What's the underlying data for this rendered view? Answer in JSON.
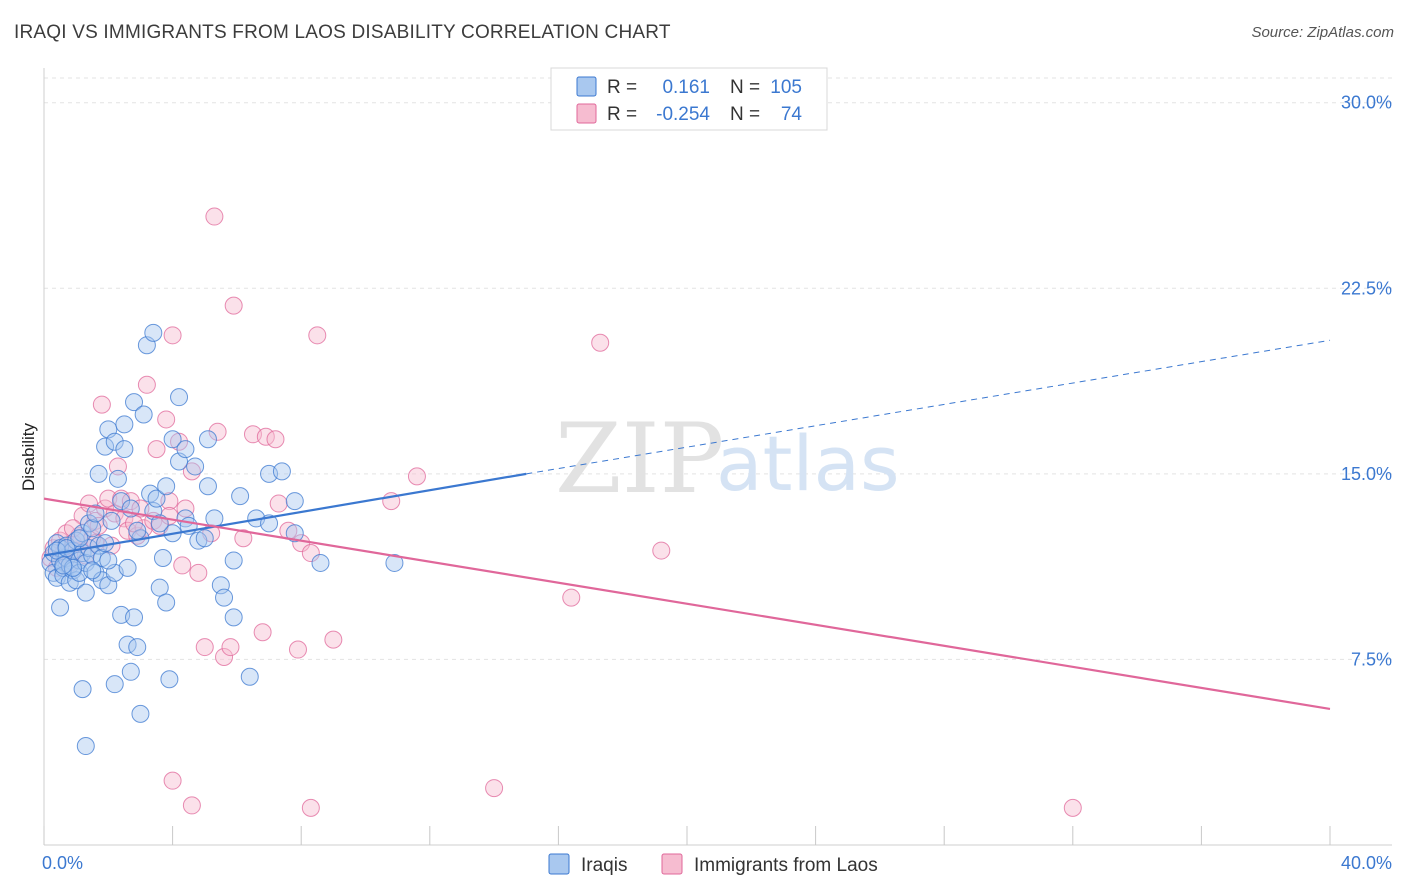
{
  "title": "IRAQI VS IMMIGRANTS FROM LAOS DISABILITY CORRELATION CHART",
  "source": "Source: ZipAtlas.com",
  "watermark": {
    "zip": "ZIP",
    "atlas": "atlas"
  },
  "chart_data": {
    "type": "scatter",
    "ylabel": "Disability",
    "xlim": [
      0,
      40
    ],
    "ylim": [
      0,
      31
    ],
    "x_tick_labels": [
      "0.0%",
      "40.0%"
    ],
    "y_ticks": [
      {
        "value": 7.5,
        "label": "7.5%"
      },
      {
        "value": 15.0,
        "label": "15.0%"
      },
      {
        "value": 22.5,
        "label": "22.5%"
      },
      {
        "value": 30.0,
        "label": "30.0%"
      }
    ],
    "legend": [
      {
        "r_label": "R =",
        "r_value": "0.161",
        "n_label": "N =",
        "n_value": "105"
      },
      {
        "r_label": "R =",
        "r_value": "-0.254",
        "n_label": "N =",
        "n_value": "74"
      }
    ],
    "colors": {
      "iraqis": "#3b78d0",
      "laos": "#e0679a",
      "iraqis_fill": "#a9c8ef",
      "laos_fill": "#f6bcd0"
    },
    "series": [
      {
        "name": "Iraqis",
        "trend": {
          "x0": 0,
          "y0": 11.7,
          "x1": 15,
          "y1": 15.0,
          "dash_x1": 40,
          "dash_y1": 20.4
        },
        "points": [
          [
            0.2,
            11.4
          ],
          [
            0.3,
            11.0
          ],
          [
            0.3,
            11.8
          ],
          [
            0.4,
            12.2
          ],
          [
            0.4,
            10.8
          ],
          [
            0.5,
            11.5
          ],
          [
            0.5,
            12.0
          ],
          [
            0.6,
            11.2
          ],
          [
            0.6,
            10.9
          ],
          [
            0.7,
            11.6
          ],
          [
            0.7,
            12.1
          ],
          [
            0.8,
            11.3
          ],
          [
            0.8,
            10.6
          ],
          [
            0.9,
            11.9
          ],
          [
            0.9,
            11.1
          ],
          [
            1.0,
            10.7
          ],
          [
            1.0,
            12.3
          ],
          [
            1.1,
            11.5
          ],
          [
            1.1,
            11.0
          ],
          [
            1.2,
            11.8
          ],
          [
            1.2,
            12.6
          ],
          [
            1.3,
            10.2
          ],
          [
            1.3,
            11.4
          ],
          [
            1.4,
            13.0
          ],
          [
            1.4,
            12.0
          ],
          [
            1.5,
            11.7
          ],
          [
            1.5,
            12.8
          ],
          [
            1.6,
            11.0
          ],
          [
            1.6,
            13.4
          ],
          [
            1.7,
            15.0
          ],
          [
            1.7,
            12.1
          ],
          [
            1.8,
            10.7
          ],
          [
            1.8,
            11.6
          ],
          [
            1.9,
            12.2
          ],
          [
            1.9,
            16.1
          ],
          [
            2.0,
            10.5
          ],
          [
            2.0,
            16.8
          ],
          [
            2.1,
            13.1
          ],
          [
            2.2,
            11.0
          ],
          [
            2.2,
            16.3
          ],
          [
            2.3,
            14.8
          ],
          [
            2.4,
            13.9
          ],
          [
            2.4,
            9.3
          ],
          [
            2.5,
            17.0
          ],
          [
            2.5,
            16.0
          ],
          [
            2.6,
            8.1
          ],
          [
            2.6,
            11.2
          ],
          [
            2.7,
            7.0
          ],
          [
            2.7,
            13.6
          ],
          [
            2.8,
            9.2
          ],
          [
            2.8,
            17.9
          ],
          [
            2.9,
            8.0
          ],
          [
            3.0,
            12.4
          ],
          [
            3.0,
            5.3
          ],
          [
            3.1,
            17.4
          ],
          [
            3.2,
            20.2
          ],
          [
            3.3,
            14.2
          ],
          [
            3.4,
            13.5
          ],
          [
            3.4,
            20.7
          ],
          [
            3.5,
            14.0
          ],
          [
            3.6,
            10.4
          ],
          [
            3.7,
            11.6
          ],
          [
            3.8,
            9.8
          ],
          [
            3.8,
            14.5
          ],
          [
            3.9,
            6.7
          ],
          [
            4.0,
            12.6
          ],
          [
            4.0,
            16.4
          ],
          [
            4.2,
            15.5
          ],
          [
            4.2,
            18.1
          ],
          [
            4.4,
            13.2
          ],
          [
            4.4,
            16.0
          ],
          [
            4.5,
            12.9
          ],
          [
            4.7,
            15.3
          ],
          [
            4.8,
            12.3
          ],
          [
            5.0,
            12.4
          ],
          [
            5.1,
            14.5
          ],
          [
            5.1,
            16.4
          ],
          [
            5.3,
            13.2
          ],
          [
            5.5,
            10.5
          ],
          [
            5.6,
            10.0
          ],
          [
            5.9,
            9.2
          ],
          [
            5.9,
            11.5
          ],
          [
            6.1,
            14.1
          ],
          [
            6.4,
            6.8
          ],
          [
            6.6,
            13.2
          ],
          [
            7.0,
            15.0
          ],
          [
            7.4,
            15.1
          ],
          [
            7.8,
            13.9
          ],
          [
            8.6,
            11.4
          ],
          [
            1.2,
            6.3
          ],
          [
            1.3,
            4.0
          ],
          [
            2.2,
            6.5
          ],
          [
            0.5,
            9.6
          ],
          [
            0.9,
            11.2
          ],
          [
            1.5,
            11.1
          ],
          [
            2.0,
            11.5
          ],
          [
            0.4,
            11.9
          ],
          [
            0.7,
            12.0
          ],
          [
            1.1,
            12.4
          ],
          [
            0.6,
            11.3
          ],
          [
            7.0,
            13.0
          ],
          [
            7.8,
            12.6
          ],
          [
            10.9,
            11.4
          ],
          [
            2.9,
            12.7
          ],
          [
            3.6,
            13.0
          ]
        ]
      },
      {
        "name": "Immigrants from Laos",
        "trend": {
          "x0": 0,
          "y0": 14.0,
          "x1": 40,
          "y1": 5.5
        },
        "points": [
          [
            0.2,
            11.6
          ],
          [
            0.3,
            12.0
          ],
          [
            0.4,
            11.2
          ],
          [
            0.5,
            12.3
          ],
          [
            0.6,
            11.8
          ],
          [
            0.7,
            12.6
          ],
          [
            0.8,
            11.4
          ],
          [
            0.9,
            12.2
          ],
          [
            1.0,
            11.9
          ],
          [
            1.1,
            12.5
          ],
          [
            1.2,
            13.3
          ],
          [
            1.3,
            11.7
          ],
          [
            1.4,
            13.8
          ],
          [
            1.5,
            12.4
          ],
          [
            1.6,
            13.1
          ],
          [
            1.7,
            12.9
          ],
          [
            1.8,
            17.8
          ],
          [
            1.9,
            13.6
          ],
          [
            2.0,
            14.0
          ],
          [
            2.1,
            12.1
          ],
          [
            2.2,
            13.4
          ],
          [
            2.3,
            15.3
          ],
          [
            2.4,
            14.0
          ],
          [
            2.5,
            13.2
          ],
          [
            2.6,
            12.7
          ],
          [
            2.7,
            13.9
          ],
          [
            2.9,
            12.5
          ],
          [
            3.0,
            13.6
          ],
          [
            3.1,
            12.8
          ],
          [
            3.2,
            18.6
          ],
          [
            3.4,
            13.1
          ],
          [
            3.5,
            16.0
          ],
          [
            3.6,
            12.9
          ],
          [
            3.8,
            17.2
          ],
          [
            3.9,
            13.9
          ],
          [
            4.0,
            20.6
          ],
          [
            4.2,
            16.3
          ],
          [
            4.3,
            11.3
          ],
          [
            4.4,
            13.6
          ],
          [
            4.6,
            15.1
          ],
          [
            4.8,
            11.0
          ],
          [
            5.0,
            8.0
          ],
          [
            5.2,
            12.6
          ],
          [
            5.4,
            16.7
          ],
          [
            5.6,
            7.6
          ],
          [
            5.8,
            8.0
          ],
          [
            5.9,
            21.8
          ],
          [
            6.2,
            12.4
          ],
          [
            6.5,
            16.6
          ],
          [
            6.8,
            8.6
          ],
          [
            6.9,
            16.5
          ],
          [
            7.2,
            16.4
          ],
          [
            7.3,
            13.8
          ],
          [
            7.6,
            12.7
          ],
          [
            8.0,
            12.2
          ],
          [
            8.3,
            11.8
          ],
          [
            8.5,
            20.6
          ],
          [
            9.0,
            8.3
          ],
          [
            10.8,
            13.9
          ],
          [
            11.6,
            14.9
          ],
          [
            14.0,
            2.3
          ],
          [
            16.4,
            10.0
          ],
          [
            17.3,
            20.3
          ],
          [
            19.2,
            11.9
          ],
          [
            5.3,
            25.4
          ],
          [
            4.0,
            2.6
          ],
          [
            4.6,
            1.6
          ],
          [
            8.3,
            1.5
          ],
          [
            32.0,
            1.5
          ],
          [
            0.9,
            12.8
          ],
          [
            1.6,
            12.2
          ],
          [
            2.8,
            13.0
          ],
          [
            3.9,
            13.3
          ],
          [
            7.9,
            7.9
          ]
        ]
      }
    ]
  },
  "bottom_legend": [
    {
      "label": "Iraqis"
    },
    {
      "label": "Immigrants from Laos"
    }
  ]
}
